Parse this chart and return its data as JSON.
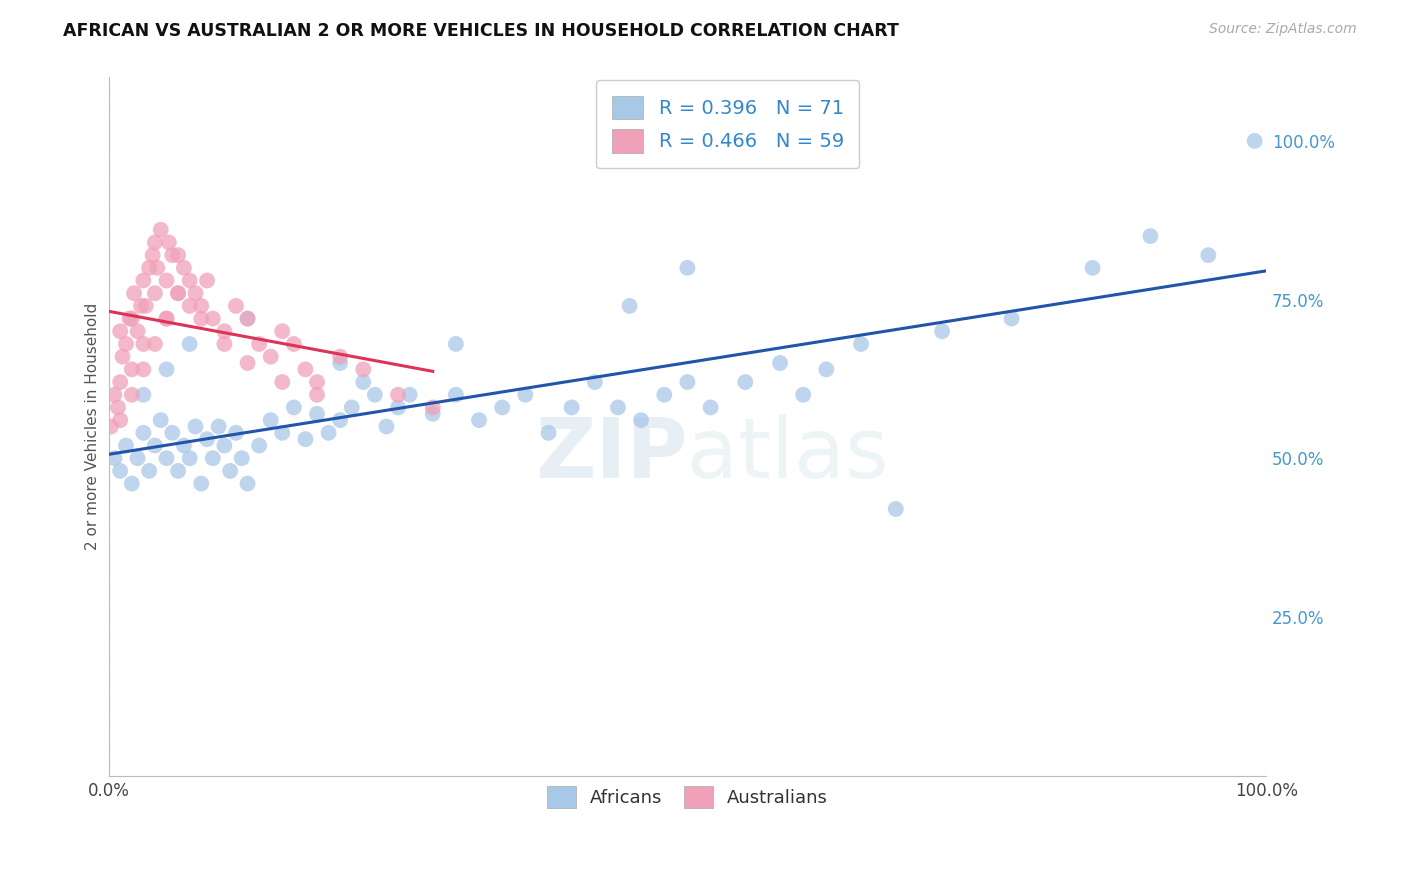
{
  "title": "AFRICAN VS AUSTRALIAN 2 OR MORE VEHICLES IN HOUSEHOLD CORRELATION CHART",
  "source": "Source: ZipAtlas.com",
  "ylabel": "2 or more Vehicles in Household",
  "legend_R1": "R = 0.396",
  "legend_N1": "N = 71",
  "legend_R2": "R = 0.466",
  "legend_N2": "N = 59",
  "legend_label1": "Africans",
  "legend_label2": "Australians",
  "watermark": "ZIPatlas",
  "blue_scatter_color": "#a8c8e8",
  "pink_scatter_color": "#f0a0b8",
  "blue_line_color": "#2255aa",
  "pink_line_color": "#dd3355",
  "right_tick_color": "#4499cc",
  "xlim": [
    0,
    100
  ],
  "ylim": [
    0,
    110
  ],
  "africans_x": [
    0.5,
    1.0,
    1.5,
    2.0,
    2.5,
    3.0,
    3.5,
    4.0,
    4.5,
    5.0,
    5.5,
    6.0,
    6.5,
    7.0,
    7.5,
    8.0,
    8.5,
    9.0,
    9.5,
    10.0,
    10.5,
    11.0,
    11.5,
    12.0,
    13.0,
    14.0,
    15.0,
    16.0,
    17.0,
    18.0,
    19.0,
    20.0,
    21.0,
    22.0,
    23.0,
    24.0,
    25.0,
    26.0,
    28.0,
    30.0,
    32.0,
    34.0,
    36.0,
    38.0,
    40.0,
    42.0,
    44.0,
    46.0,
    48.0,
    50.0,
    52.0,
    55.0,
    58.0,
    60.0,
    62.0,
    65.0,
    68.0,
    72.0,
    78.0,
    85.0,
    90.0,
    95.0,
    99.0,
    3.0,
    5.0,
    7.0,
    12.0,
    20.0,
    30.0,
    45.0,
    50.0
  ],
  "africans_y": [
    50,
    48,
    52,
    46,
    50,
    54,
    48,
    52,
    56,
    50,
    54,
    48,
    52,
    50,
    55,
    46,
    53,
    50,
    55,
    52,
    48,
    54,
    50,
    46,
    52,
    56,
    54,
    58,
    53,
    57,
    54,
    56,
    58,
    62,
    60,
    55,
    58,
    60,
    57,
    60,
    56,
    58,
    60,
    54,
    58,
    62,
    58,
    56,
    60,
    62,
    58,
    62,
    65,
    60,
    64,
    68,
    42,
    70,
    72,
    80,
    85,
    82,
    100,
    60,
    64,
    68,
    72,
    65,
    68,
    74,
    80
  ],
  "australians_x": [
    0.2,
    0.5,
    0.8,
    1.0,
    1.0,
    1.2,
    1.5,
    1.8,
    2.0,
    2.0,
    2.2,
    2.5,
    2.8,
    3.0,
    3.0,
    3.2,
    3.5,
    3.8,
    4.0,
    4.0,
    4.2,
    4.5,
    5.0,
    5.0,
    5.2,
    5.5,
    6.0,
    6.0,
    6.5,
    7.0,
    7.5,
    8.0,
    8.5,
    9.0,
    10.0,
    11.0,
    12.0,
    13.0,
    14.0,
    15.0,
    16.0,
    17.0,
    18.0,
    20.0,
    22.0,
    25.0,
    28.0,
    1.0,
    2.0,
    3.0,
    4.0,
    5.0,
    6.0,
    7.0,
    8.0,
    10.0,
    12.0,
    15.0,
    18.0
  ],
  "australians_y": [
    55,
    60,
    58,
    62,
    70,
    66,
    68,
    72,
    64,
    72,
    76,
    70,
    74,
    68,
    78,
    74,
    80,
    82,
    76,
    84,
    80,
    86,
    72,
    78,
    84,
    82,
    76,
    82,
    80,
    78,
    76,
    74,
    78,
    72,
    70,
    74,
    72,
    68,
    66,
    70,
    68,
    64,
    62,
    66,
    64,
    60,
    58,
    56,
    60,
    64,
    68,
    72,
    76,
    74,
    72,
    68,
    65,
    62,
    60
  ]
}
